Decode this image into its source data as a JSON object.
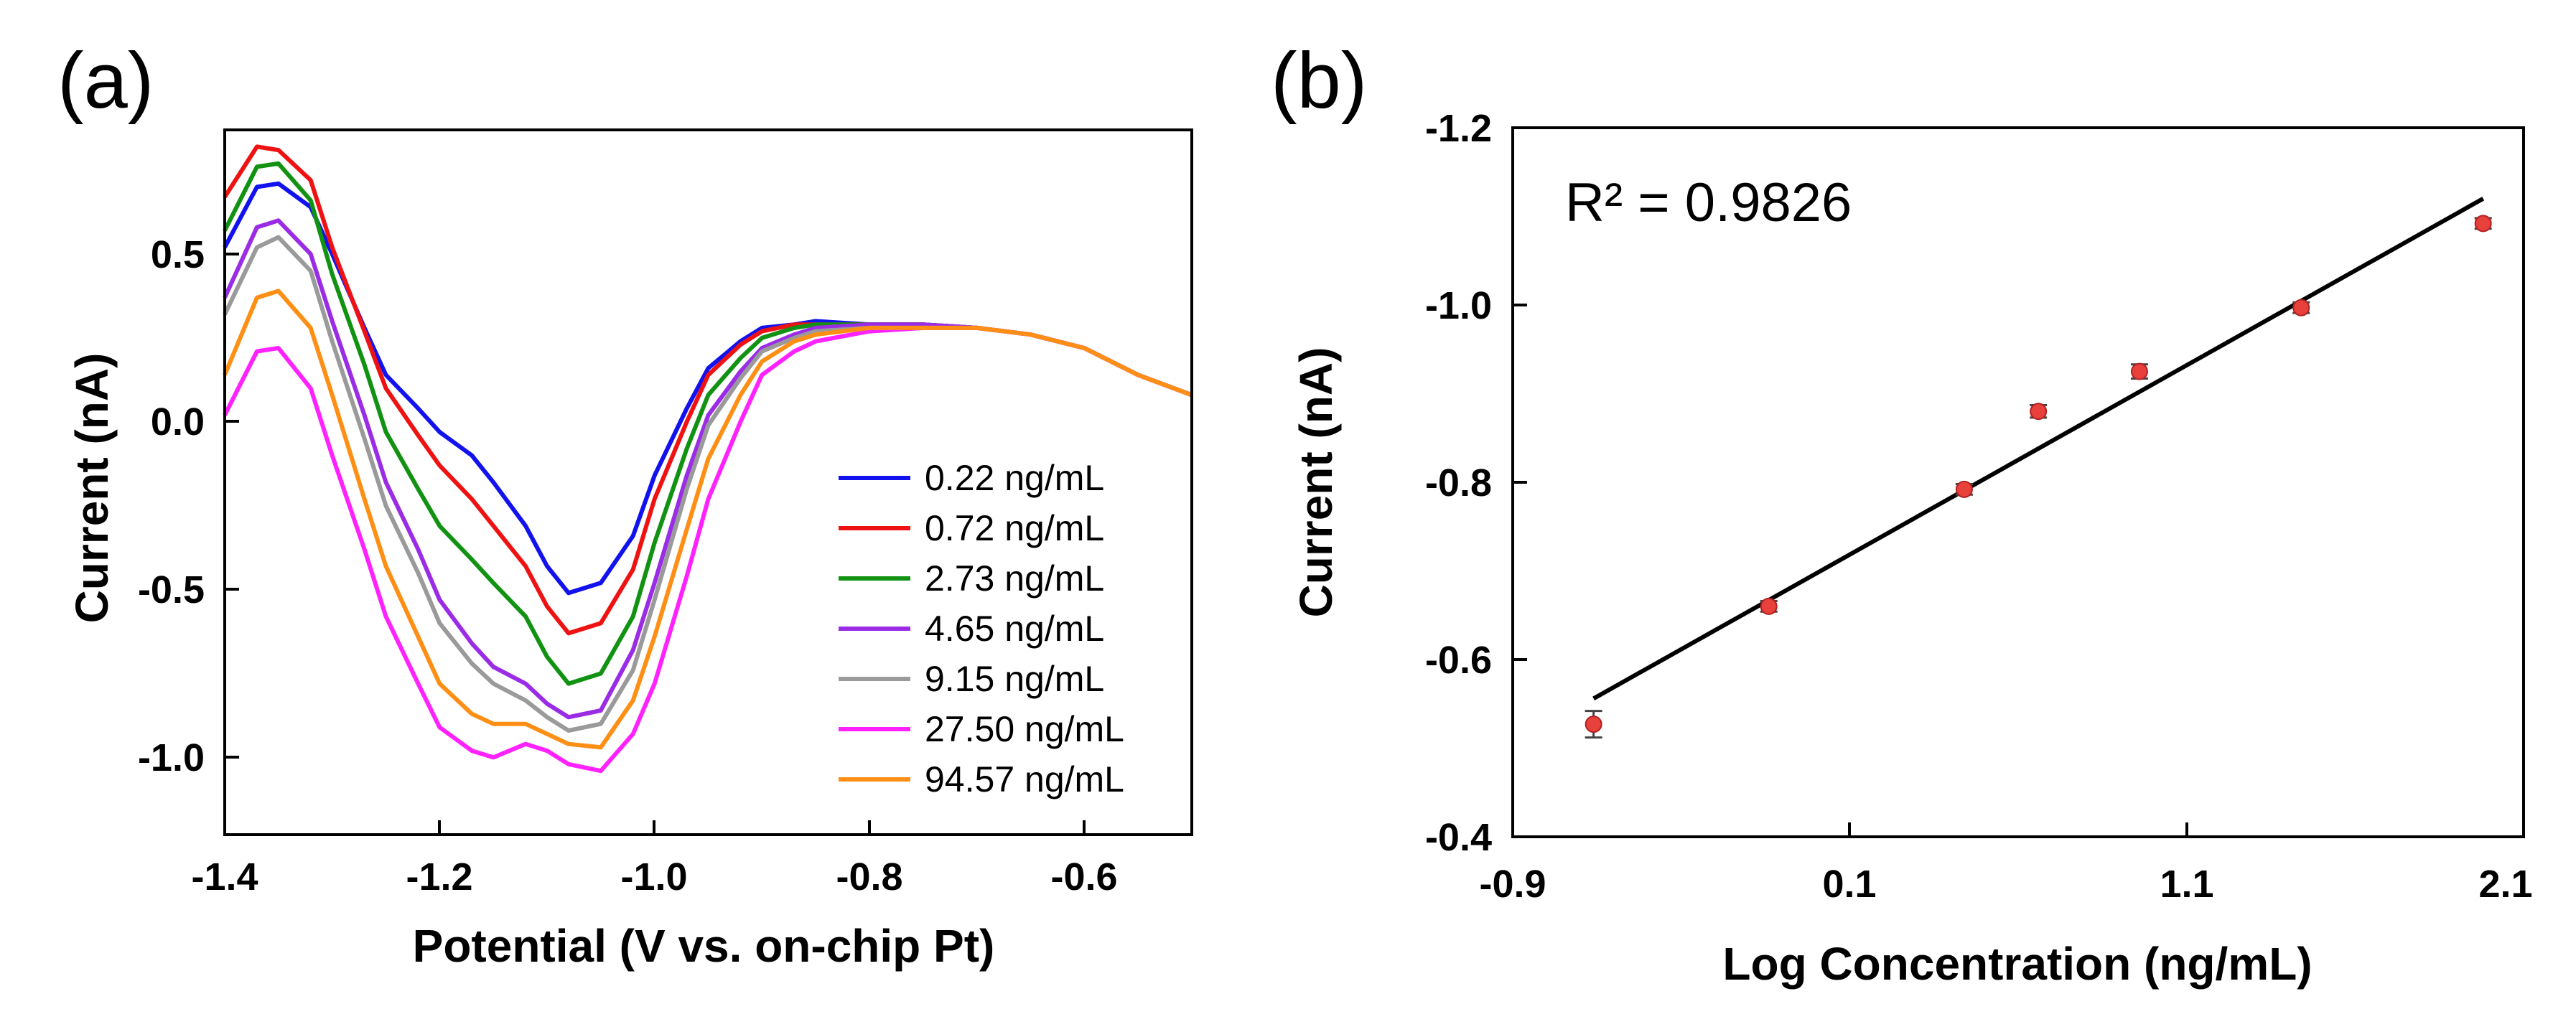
{
  "colors": {
    "c0": "#1212ef",
    "c1": "#ef1212",
    "c2": "#129212",
    "c3": "#9a2ce6",
    "c4": "#9a9a9a",
    "c5": "#ff22ff",
    "c6": "#ff8f14",
    "fit_line": "#000000",
    "points": "#e8403a"
  },
  "chart_data": [
    {
      "panel": "(a)",
      "type": "line",
      "xlabel": "Potential (V vs. on-chip Pt)",
      "ylabel": "Current (nA)",
      "xlim": [
        -1.4,
        -0.5
      ],
      "ylim": [
        -1.25,
        0.85
      ],
      "x_ticks": [
        -1.4,
        -1.2,
        -1.0,
        -0.8,
        -0.6
      ],
      "x_tick_labels": [
        "-1.4",
        "-1.2",
        "-1.0",
        "-0.8",
        "-0.6"
      ],
      "y_ticks": [
        -1.0,
        -0.5,
        0.0,
        0.5
      ],
      "y_tick_labels": [
        "-1.0",
        "-0.5",
        "0.0",
        "0.5"
      ],
      "legend_position": "lower-right",
      "series": [
        {
          "name": "0.22 ng/mL",
          "color_key": "c0",
          "x": [
            -1.4,
            -1.37,
            -1.35,
            -1.32,
            -1.3,
            -1.27,
            -1.25,
            -1.22,
            -1.2,
            -1.17,
            -1.15,
            -1.12,
            -1.1,
            -1.08,
            -1.05,
            -1.02,
            -1.0,
            -0.97,
            -0.95,
            -0.92,
            -0.9,
            -0.87,
            -0.85,
            -0.8,
            -0.75,
            -0.7,
            -0.65,
            -0.6,
            -0.55,
            -0.5
          ],
          "y": [
            0.5,
            0.68,
            0.69,
            0.62,
            0.48,
            0.26,
            0.12,
            0.02,
            -0.05,
            -0.12,
            -0.2,
            -0.33,
            -0.45,
            -0.53,
            -0.5,
            -0.36,
            -0.18,
            0.02,
            0.14,
            0.22,
            0.26,
            0.27,
            0.28,
            0.27,
            0.27,
            0.26,
            0.24,
            0.2,
            0.12,
            0.06
          ]
        },
        {
          "name": "0.72 ng/mL",
          "color_key": "c1",
          "x": [
            -1.4,
            -1.37,
            -1.35,
            -1.32,
            -1.3,
            -1.27,
            -1.25,
            -1.22,
            -1.2,
            -1.17,
            -1.15,
            -1.12,
            -1.1,
            -1.08,
            -1.05,
            -1.02,
            -1.0,
            -0.97,
            -0.95,
            -0.92,
            -0.9,
            -0.87,
            -0.85,
            -0.8,
            -0.75,
            -0.7,
            -0.65,
            -0.6,
            -0.55,
            -0.5
          ],
          "y": [
            0.65,
            0.8,
            0.79,
            0.7,
            0.5,
            0.25,
            0.08,
            -0.06,
            -0.15,
            -0.25,
            -0.33,
            -0.45,
            -0.57,
            -0.65,
            -0.62,
            -0.46,
            -0.25,
            -0.02,
            0.12,
            0.21,
            0.25,
            0.27,
            0.27,
            0.27,
            0.27,
            0.26,
            0.24,
            0.2,
            0.12,
            0.06
          ]
        },
        {
          "name": "2.73 ng/mL",
          "color_key": "c2",
          "x": [
            -1.4,
            -1.37,
            -1.35,
            -1.32,
            -1.3,
            -1.27,
            -1.25,
            -1.22,
            -1.2,
            -1.17,
            -1.15,
            -1.12,
            -1.1,
            -1.08,
            -1.05,
            -1.02,
            -1.0,
            -0.97,
            -0.95,
            -0.92,
            -0.9,
            -0.87,
            -0.85,
            -0.8,
            -0.75,
            -0.7,
            -0.65,
            -0.6,
            -0.55,
            -0.5
          ],
          "y": [
            0.55,
            0.74,
            0.75,
            0.64,
            0.42,
            0.15,
            -0.05,
            -0.22,
            -0.33,
            -0.43,
            -0.5,
            -0.6,
            -0.72,
            -0.8,
            -0.77,
            -0.6,
            -0.38,
            -0.1,
            0.06,
            0.17,
            0.23,
            0.26,
            0.27,
            0.27,
            0.27,
            0.26,
            0.24,
            0.2,
            0.12,
            0.06
          ]
        },
        {
          "name": "4.65 ng/mL",
          "color_key": "c3",
          "x": [
            -1.4,
            -1.37,
            -1.35,
            -1.32,
            -1.3,
            -1.27,
            -1.25,
            -1.22,
            -1.2,
            -1.17,
            -1.15,
            -1.12,
            -1.1,
            -1.08,
            -1.05,
            -1.02,
            -1.0,
            -0.97,
            -0.95,
            -0.92,
            -0.9,
            -0.87,
            -0.85,
            -0.8,
            -0.75,
            -0.7,
            -0.65,
            -0.6,
            -0.55,
            -0.5
          ],
          "y": [
            0.35,
            0.56,
            0.58,
            0.48,
            0.28,
            0.0,
            -0.2,
            -0.4,
            -0.55,
            -0.68,
            -0.75,
            -0.8,
            -0.86,
            -0.9,
            -0.88,
            -0.7,
            -0.5,
            -0.18,
            0.0,
            0.13,
            0.2,
            0.24,
            0.26,
            0.27,
            0.27,
            0.26,
            0.24,
            0.2,
            0.12,
            0.06
          ]
        },
        {
          "name": "9.15 ng/mL",
          "color_key": "c4",
          "x": [
            -1.4,
            -1.37,
            -1.35,
            -1.32,
            -1.3,
            -1.27,
            -1.25,
            -1.22,
            -1.2,
            -1.17,
            -1.15,
            -1.12,
            -1.1,
            -1.08,
            -1.05,
            -1.02,
            -1.0,
            -0.97,
            -0.95,
            -0.92,
            -0.9,
            -0.87,
            -0.85,
            -0.8,
            -0.75,
            -0.7,
            -0.65,
            -0.6,
            -0.55,
            -0.5
          ],
          "y": [
            0.3,
            0.5,
            0.53,
            0.43,
            0.22,
            -0.07,
            -0.27,
            -0.47,
            -0.62,
            -0.74,
            -0.8,
            -0.85,
            -0.9,
            -0.94,
            -0.92,
            -0.76,
            -0.55,
            -0.22,
            -0.03,
            0.11,
            0.19,
            0.23,
            0.25,
            0.26,
            0.26,
            0.26,
            0.24,
            0.2,
            0.12,
            0.06
          ]
        },
        {
          "name": "27.50 ng/mL",
          "color_key": "c5",
          "x": [
            -1.4,
            -1.37,
            -1.35,
            -1.32,
            -1.3,
            -1.27,
            -1.25,
            -1.22,
            -1.2,
            -1.17,
            -1.15,
            -1.12,
            -1.1,
            -1.08,
            -1.05,
            -1.02,
            -1.0,
            -0.97,
            -0.95,
            -0.92,
            -0.9,
            -0.87,
            -0.85,
            -0.8,
            -0.75,
            -0.7,
            -0.65,
            -0.6,
            -0.55,
            -0.5
          ],
          "y": [
            0.0,
            0.19,
            0.2,
            0.08,
            -0.12,
            -0.4,
            -0.6,
            -0.8,
            -0.93,
            -1.0,
            -1.02,
            -0.98,
            -1.0,
            -1.04,
            -1.06,
            -0.95,
            -0.8,
            -0.48,
            -0.25,
            -0.02,
            0.12,
            0.19,
            0.22,
            0.25,
            0.26,
            0.26,
            0.24,
            0.2,
            0.12,
            0.06
          ]
        },
        {
          "name": "94.57 ng/mL",
          "color_key": "c6",
          "x": [
            -1.4,
            -1.37,
            -1.35,
            -1.32,
            -1.3,
            -1.27,
            -1.25,
            -1.22,
            -1.2,
            -1.17,
            -1.15,
            -1.12,
            -1.1,
            -1.08,
            -1.05,
            -1.02,
            -1.0,
            -0.97,
            -0.95,
            -0.92,
            -0.9,
            -0.87,
            -0.85,
            -0.8,
            -0.75,
            -0.7,
            -0.65,
            -0.6,
            -0.55,
            -0.5
          ],
          "y": [
            0.12,
            0.35,
            0.37,
            0.26,
            0.06,
            -0.25,
            -0.45,
            -0.66,
            -0.8,
            -0.89,
            -0.92,
            -0.92,
            -0.95,
            -0.98,
            -0.99,
            -0.85,
            -0.66,
            -0.34,
            -0.13,
            0.06,
            0.16,
            0.22,
            0.24,
            0.26,
            0.26,
            0.26,
            0.24,
            0.2,
            0.12,
            0.06
          ]
        }
      ]
    },
    {
      "panel": "(b)",
      "type": "scatter",
      "xlabel": "Log Concentration (ng/mL)",
      "ylabel": "Current (nA)",
      "xlim": [
        -0.9,
        2.1
      ],
      "ylim": [
        -0.4,
        -1.2
      ],
      "x_ticks": [
        -0.9,
        0.1,
        1.1,
        2.1
      ],
      "x_tick_labels": [
        "-0.9",
        "0.1",
        "1.1",
        "2.1"
      ],
      "y_ticks": [
        -0.4,
        -0.6,
        -0.8,
        -1.0,
        -1.2
      ],
      "y_tick_labels": [
        "-0.4",
        "-0.6",
        "-0.8",
        "-1.0",
        "-1.2"
      ],
      "annotation": "R² = 0.9826",
      "points": {
        "x": [
          -0.66,
          -0.14,
          0.44,
          0.66,
          0.96,
          1.44,
          1.98
        ],
        "y": [
          -0.527,
          -0.66,
          -0.792,
          -0.88,
          -0.925,
          -0.997,
          -1.092
        ],
        "err": [
          0.015,
          0.006,
          0.006,
          0.007,
          0.008,
          0.006,
          0.006
        ]
      },
      "fit": {
        "x": [
          -0.66,
          1.98
        ],
        "y": [
          -0.556,
          -1.12
        ]
      }
    }
  ]
}
